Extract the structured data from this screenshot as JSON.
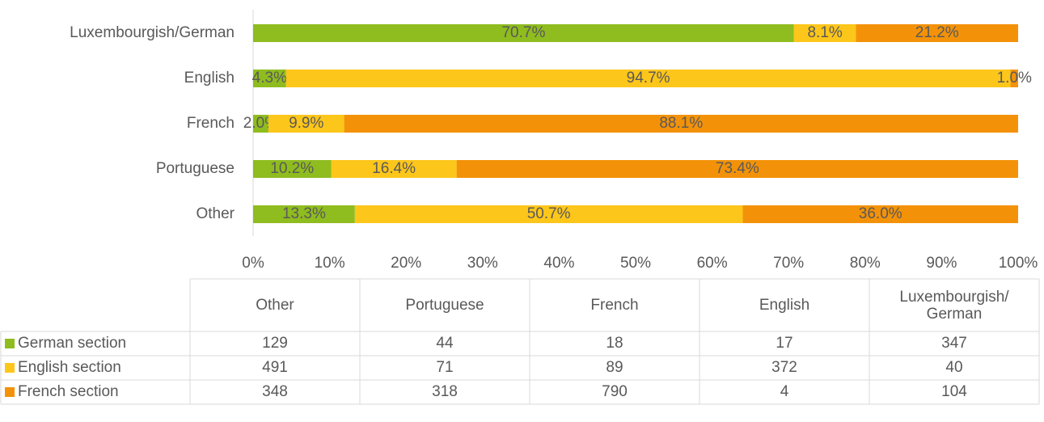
{
  "chart_data": {
    "type": "stacked_bar_100",
    "categories": [
      "Other",
      "Portuguese",
      "French",
      "English",
      "Luxembourgish/German"
    ],
    "series": [
      {
        "name": "German section",
        "color": "#8fbc1f",
        "values": [
          13.3,
          10.2,
          2.0,
          4.3,
          70.7
        ],
        "value_labels": [
          "13.3%",
          "10.2%",
          "2.0%",
          "4.3%",
          "70.7%"
        ],
        "counts": [
          129,
          44,
          18,
          17,
          347
        ]
      },
      {
        "name": "English section",
        "color": "#fdc61a",
        "values": [
          50.7,
          16.4,
          9.9,
          94.7,
          8.1
        ],
        "value_labels": [
          "50.7%",
          "16.4%",
          "9.9%",
          "94.7%",
          "8.1%"
        ],
        "counts": [
          491,
          71,
          89,
          372,
          40
        ]
      },
      {
        "name": "French section",
        "color": "#f39208",
        "values": [
          36.0,
          73.4,
          88.1,
          1.0,
          21.2
        ],
        "value_labels": [
          "36.0%",
          "73.4%",
          "88.1%",
          "1.0%",
          "21.2%"
        ],
        "counts": [
          348,
          318,
          790,
          4,
          104
        ]
      }
    ],
    "xlim": [
      0,
      100
    ],
    "xticks": [
      {
        "value": 0,
        "label": "0%"
      },
      {
        "value": 10,
        "label": "10%"
      },
      {
        "value": 20,
        "label": "20%"
      },
      {
        "value": 30,
        "label": "30%"
      },
      {
        "value": 40,
        "label": "40%"
      },
      {
        "value": 50,
        "label": "50%"
      },
      {
        "value": 60,
        "label": "60%"
      },
      {
        "value": 70,
        "label": "70%"
      },
      {
        "value": 80,
        "label": "80%"
      },
      {
        "value": 90,
        "label": "90%"
      },
      {
        "value": 100,
        "label": "100%"
      }
    ]
  }
}
